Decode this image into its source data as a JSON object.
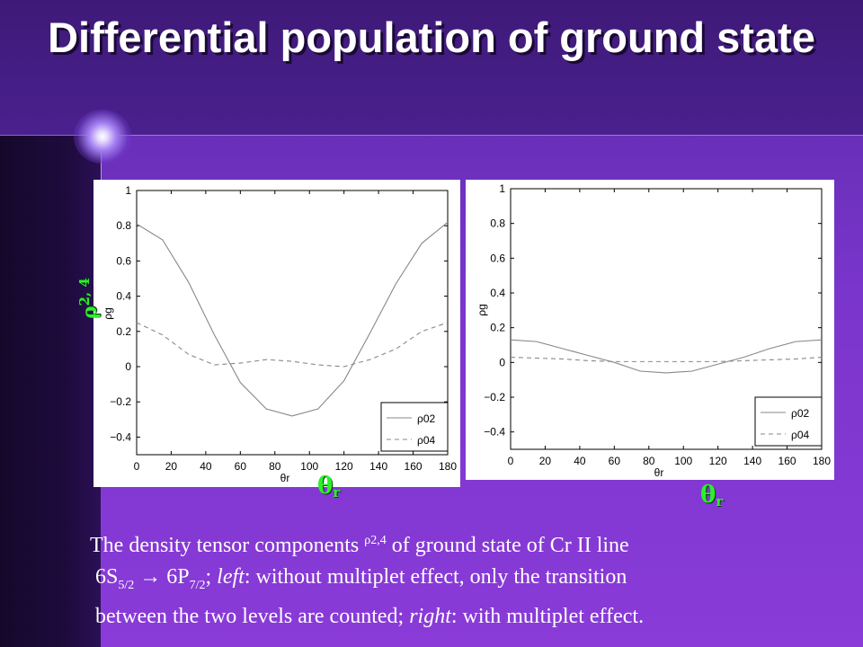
{
  "slide": {
    "title": "Differential population of ground state",
    "theta_label": "θ",
    "theta_sub": "r",
    "rho_label": "ρ",
    "rho_sup": "2, 4",
    "caption": {
      "line1_a": "The density tensor components ",
      "line1_sup": "ρ2,4",
      "line1_b": " of ground state of Cr II line",
      "line2_a": "6S",
      "line2_sub1": "5/2",
      "line2_arrow": " → 6P",
      "line2_sub2": "7/2",
      "line2_b": "; ",
      "line2_left": "left",
      "line2_c": ": without multiplet effect, only the transition",
      "line3_a": "between the two levels are counted; ",
      "line3_right": "right",
      "line3_b": ": with multiplet effect."
    }
  },
  "chart_data": [
    {
      "type": "line",
      "xlabel": "θr",
      "ylabel": "ρg",
      "xlim": [
        0,
        180
      ],
      "ylim": [
        -0.5,
        1
      ],
      "xticks": [
        "0",
        "20",
        "40",
        "60",
        "80",
        "100",
        "120",
        "140",
        "160",
        "180"
      ],
      "yticks": [
        "1",
        "0.8",
        "0.6",
        "0.4",
        "0.2",
        "0",
        "−0.2",
        "−0.4"
      ],
      "x": [
        0,
        15,
        30,
        45,
        60,
        75,
        90,
        105,
        120,
        135,
        150,
        165,
        180
      ],
      "series": [
        {
          "name": "ρ02",
          "style": "solid",
          "values": [
            0.81,
            0.72,
            0.48,
            0.18,
            -0.09,
            -0.24,
            -0.28,
            -0.24,
            -0.08,
            0.19,
            0.47,
            0.7,
            0.82
          ]
        },
        {
          "name": "ρ04",
          "style": "dashed",
          "values": [
            0.25,
            0.18,
            0.07,
            0.01,
            0.02,
            0.04,
            0.03,
            0.01,
            0.0,
            0.04,
            0.1,
            0.2,
            0.25
          ]
        }
      ],
      "legend": "bottom-right",
      "grid": false
    },
    {
      "type": "line",
      "xlabel": "θr",
      "ylabel": "ρg",
      "xlim": [
        0,
        180
      ],
      "ylim": [
        -0.5,
        1
      ],
      "xticks": [
        "0",
        "20",
        "40",
        "60",
        "80",
        "100",
        "120",
        "140",
        "160",
        "180"
      ],
      "yticks": [
        "1",
        "0.8",
        "0.6",
        "0.4",
        "0.2",
        "0",
        "−0.2",
        "−0.4"
      ],
      "x": [
        0,
        15,
        30,
        45,
        60,
        75,
        90,
        105,
        120,
        135,
        150,
        165,
        180
      ],
      "series": [
        {
          "name": "ρ02",
          "style": "solid",
          "values": [
            0.13,
            0.12,
            0.08,
            0.04,
            0.0,
            -0.05,
            -0.06,
            -0.05,
            -0.01,
            0.03,
            0.08,
            0.12,
            0.13
          ]
        },
        {
          "name": "ρ04",
          "style": "dashed",
          "values": [
            0.03,
            0.025,
            0.02,
            0.01,
            0.005,
            0.005,
            0.005,
            0.005,
            0.005,
            0.01,
            0.015,
            0.02,
            0.03
          ]
        }
      ],
      "legend": "bottom-right",
      "grid": false
    }
  ]
}
